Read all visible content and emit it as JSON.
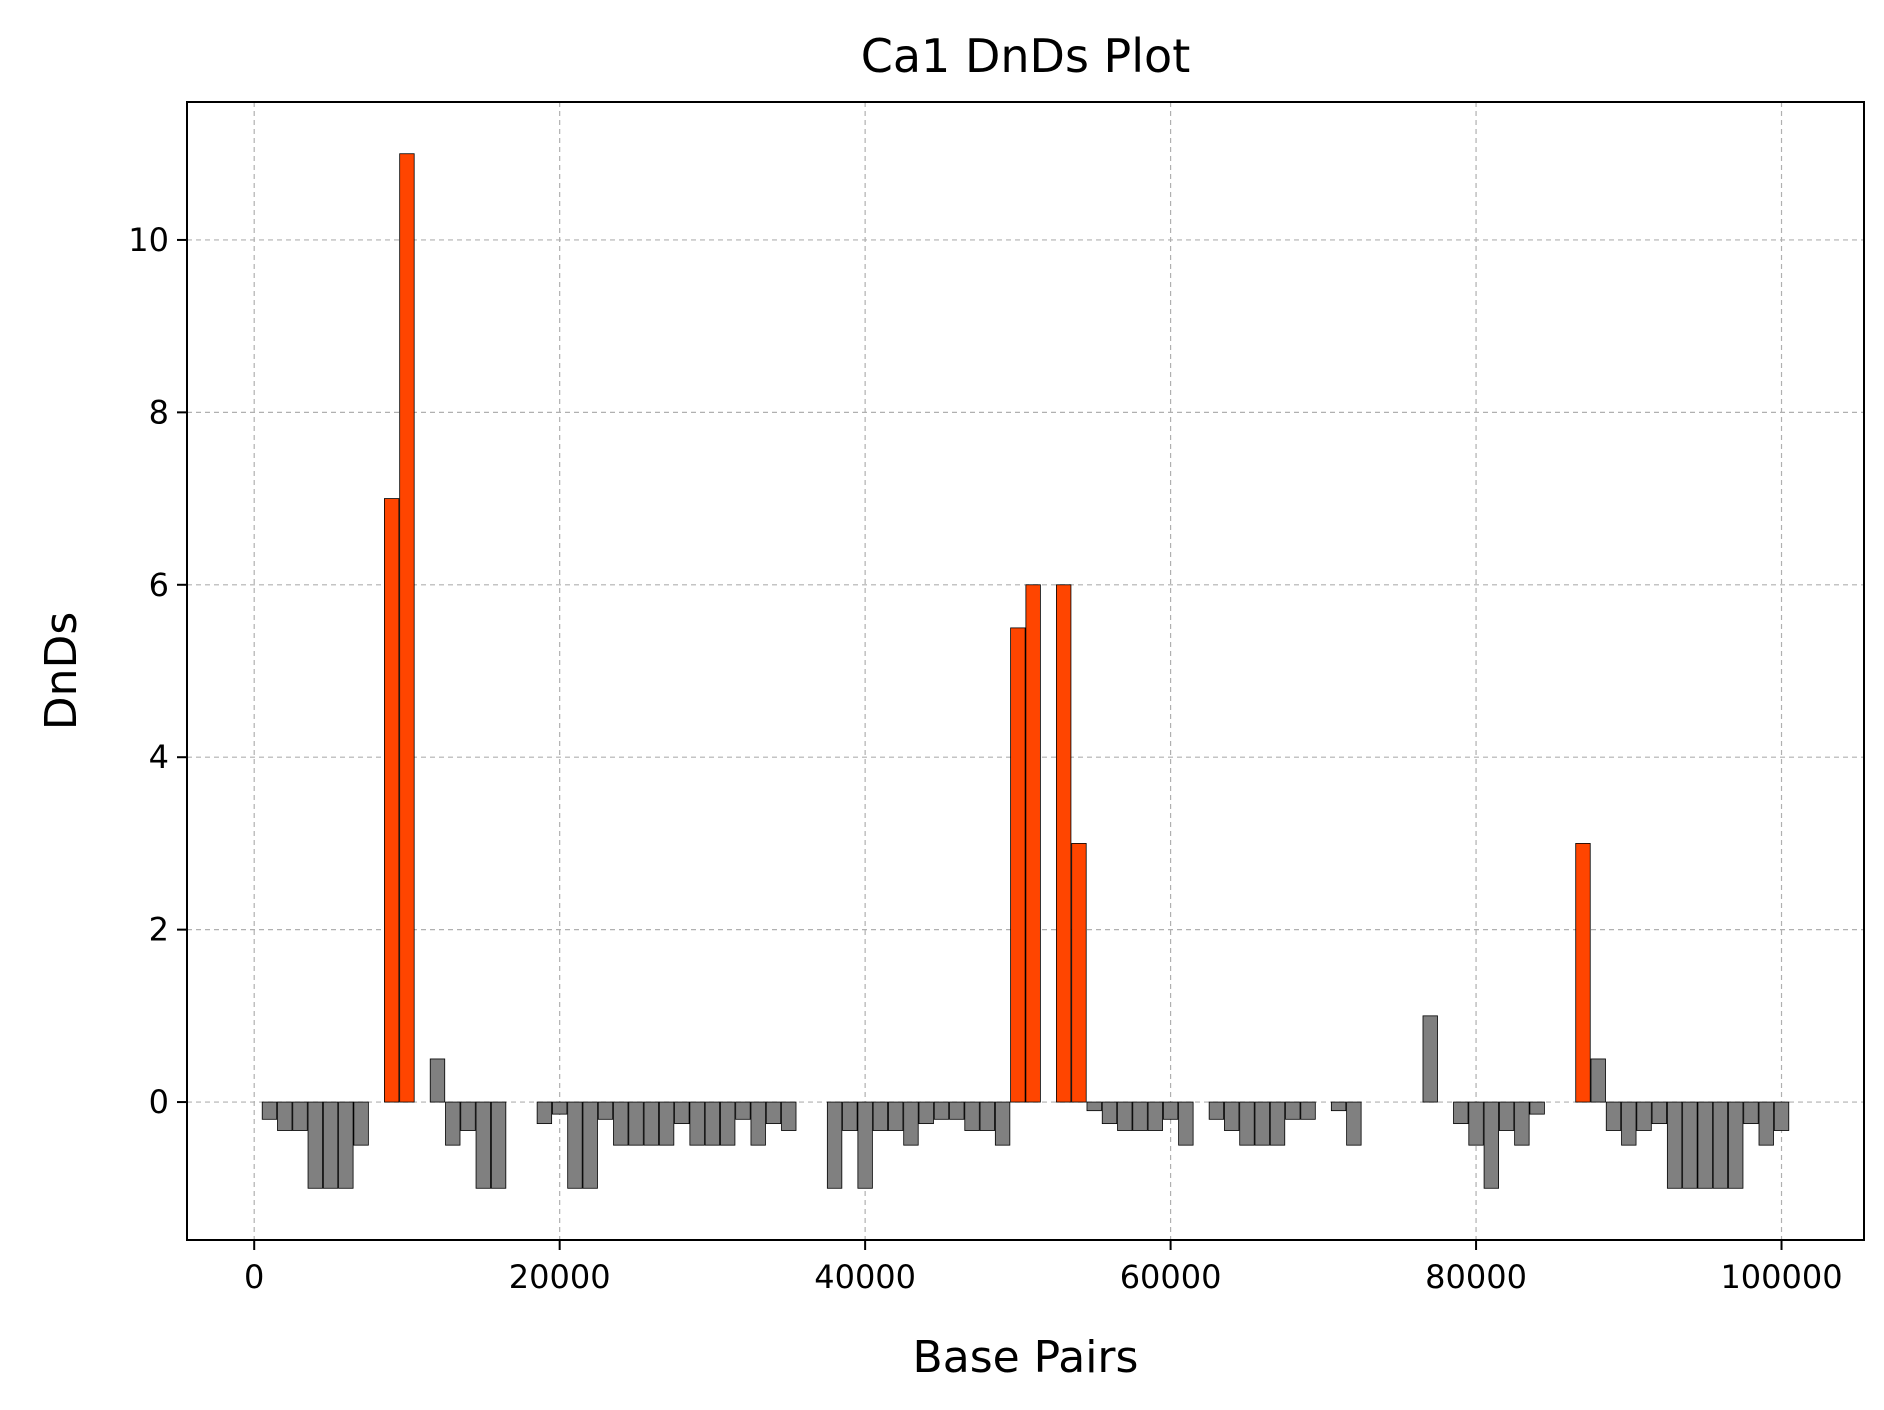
{
  "chart_data": {
    "type": "bar",
    "title": "Ca1 DnDs Plot",
    "xlabel": "Base Pairs",
    "ylabel": "DnDs",
    "xlim": [
      -4400,
      105400
    ],
    "ylim": [
      -1.6,
      11.6
    ],
    "xticks": [
      0,
      20000,
      40000,
      60000,
      80000,
      100000
    ],
    "yticks": [
      0,
      2,
      4,
      6,
      8,
      10
    ],
    "grid": true,
    "legend": "none",
    "bar_width": 950,
    "colors": {
      "positive_selection": "#ff4500",
      "other": "#808080",
      "edge": "#000000",
      "grid": "#b0b0b0"
    },
    "x": [
      1000,
      2000,
      3000,
      4000,
      5000,
      6000,
      7000,
      8000,
      9000,
      10000,
      11000,
      12000,
      13000,
      14000,
      15000,
      16000,
      17000,
      18000,
      19000,
      20000,
      21000,
      22000,
      23000,
      24000,
      25000,
      26000,
      27000,
      28000,
      29000,
      30000,
      31000,
      32000,
      33000,
      34000,
      35000,
      36000,
      37000,
      38000,
      39000,
      40000,
      41000,
      42000,
      43000,
      44000,
      45000,
      46000,
      47000,
      48000,
      49000,
      50000,
      51000,
      52000,
      53000,
      54000,
      55000,
      56000,
      57000,
      58000,
      59000,
      60000,
      61000,
      62000,
      63000,
      64000,
      65000,
      66000,
      67000,
      68000,
      69000,
      70000,
      71000,
      72000,
      73000,
      74000,
      75000,
      76000,
      77000,
      78000,
      79000,
      80000,
      81000,
      82000,
      83000,
      84000,
      85000,
      86000,
      87000,
      88000,
      89000,
      90000,
      91000,
      92000,
      93000,
      94000,
      95000,
      96000,
      97000,
      98000,
      99000,
      100000
    ],
    "values": [
      -0.2,
      -0.33,
      -0.33,
      -1,
      -1,
      -1,
      -0.5,
      0,
      7,
      11,
      0,
      0.5,
      -0.5,
      -0.33,
      -1,
      -1,
      0,
      0,
      -0.25,
      -0.14,
      -1,
      -1,
      -0.2,
      -0.5,
      -0.5,
      -0.5,
      -0.5,
      -0.25,
      -0.5,
      -0.5,
      -0.5,
      -0.2,
      -0.5,
      -0.25,
      -0.33,
      0,
      0,
      -1,
      -0.33,
      -1,
      -0.33,
      -0.33,
      -0.5,
      -0.25,
      -0.2,
      -0.2,
      -0.33,
      -0.33,
      -0.5,
      5.5,
      6,
      0,
      6,
      3,
      -0.1,
      -0.25,
      -0.33,
      -0.33,
      -0.33,
      -0.2,
      -0.5,
      0,
      -0.2,
      -0.33,
      -0.5,
      -0.5,
      -0.5,
      -0.2,
      -0.2,
      0,
      -0.1,
      -0.5,
      0,
      0,
      0,
      0,
      1,
      0,
      -0.25,
      -0.5,
      -1,
      -0.33,
      -0.5,
      -0.14,
      0,
      0,
      3,
      0.5,
      -0.33,
      -0.5,
      -0.33,
      -0.25,
      -1,
      -1,
      -1,
      -1,
      -1,
      -0.25,
      -0.5,
      -0.33
    ],
    "highlight_threshold": 1
  }
}
